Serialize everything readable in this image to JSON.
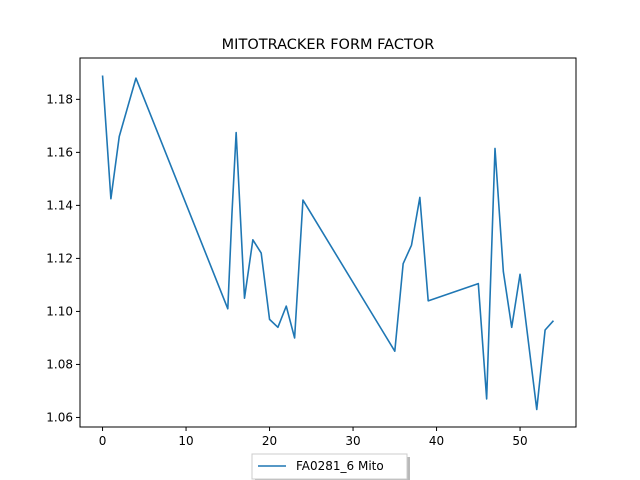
{
  "chart_data": {
    "type": "line",
    "title": "MITOTRACKER FORM FACTOR",
    "xlabel": "",
    "ylabel": "",
    "xlim": [
      -2.7,
      56.7
    ],
    "ylim": [
      1.0564,
      1.1956
    ],
    "xticks": [
      0,
      10,
      20,
      30,
      40,
      50
    ],
    "yticks": [
      1.06,
      1.08,
      1.1,
      1.12,
      1.14,
      1.16,
      1.18
    ],
    "grid": false,
    "legend_position": "bottom-center-outside",
    "series": [
      {
        "name": "FA0281_6 Mito",
        "color": "#1f77b4",
        "x": [
          0,
          1,
          2,
          3,
          4,
          15,
          15.5,
          16,
          17,
          18,
          19,
          20,
          21,
          22,
          23,
          24,
          35,
          36,
          37,
          38,
          39,
          45,
          46,
          47,
          48,
          49,
          50,
          52,
          53,
          54
        ],
        "y": [
          1.189,
          1.1425,
          1.166,
          1.177,
          1.188,
          1.101,
          1.137,
          1.1675,
          1.105,
          1.127,
          1.122,
          1.097,
          1.094,
          1.102,
          1.09,
          1.142,
          1.085,
          1.118,
          1.125,
          1.143,
          1.104,
          1.1105,
          1.067,
          1.1615,
          1.115,
          1.094,
          1.114,
          1.063,
          1.093,
          1.0965
        ]
      }
    ]
  }
}
